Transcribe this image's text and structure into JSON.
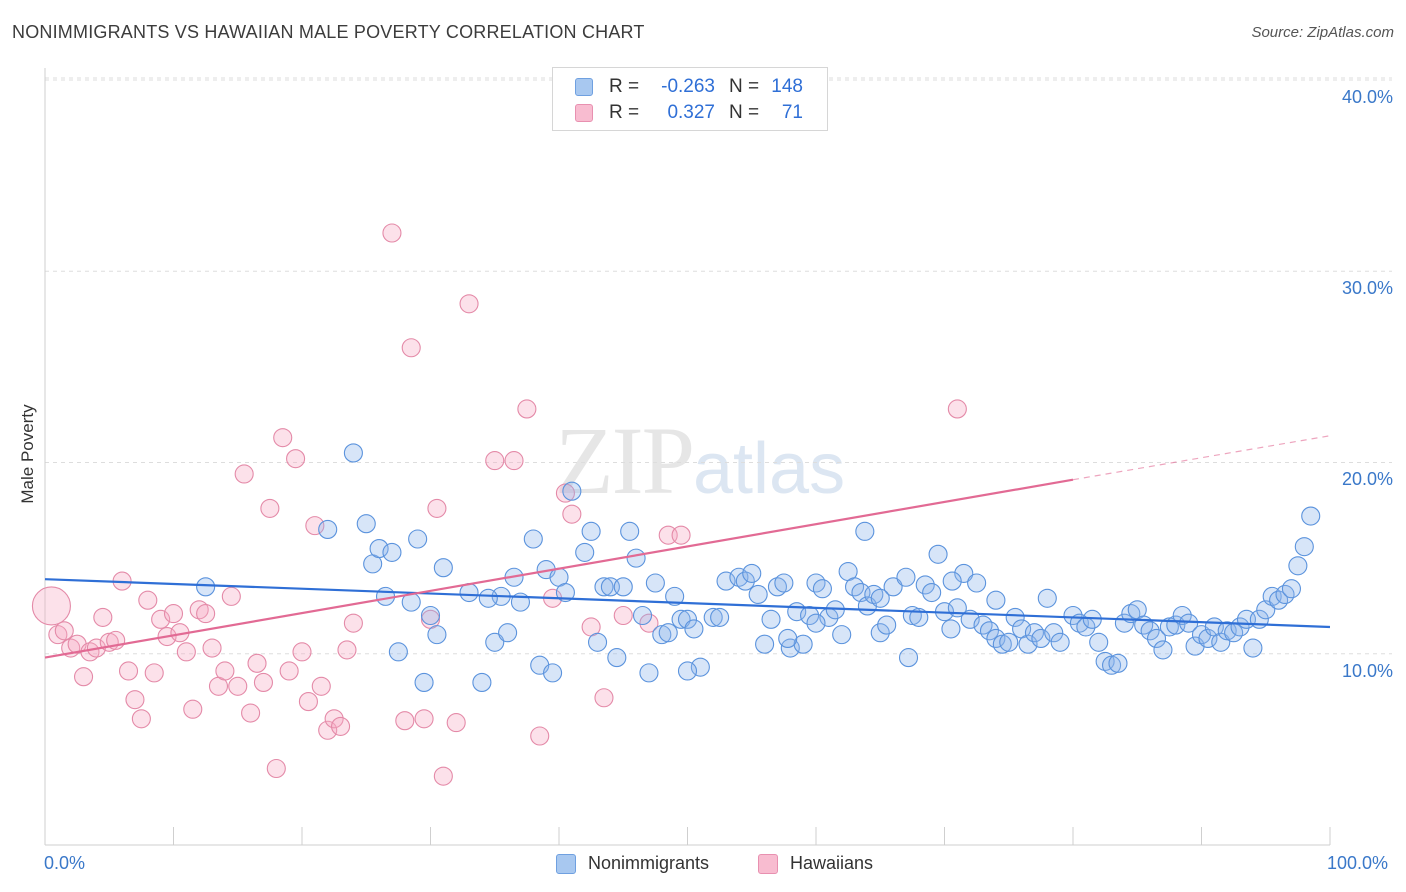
{
  "title": "NONIMMIGRANTS VS HAWAIIAN MALE POVERTY CORRELATION CHART",
  "source": "Source: ZipAtlas.com",
  "watermark": {
    "zip": "ZIP",
    "atlas": "atlas"
  },
  "legend": [
    {
      "r_label": "R =",
      "r_value": "-0.263",
      "n_label": "N =",
      "n_value": "148",
      "color": "#a8c8f0",
      "edge": "#6fa0e0"
    },
    {
      "r_label": "R =",
      "r_value": "0.327",
      "n_label": "N =",
      "n_value": "71",
      "color": "#f8bcd0",
      "edge": "#e890b0"
    }
  ],
  "bottom_legend": [
    {
      "label": "Nonimmigrants",
      "color": "#a8c8f0",
      "edge": "#6fa0e0"
    },
    {
      "label": "Hawaiians",
      "color": "#f8bcd0",
      "edge": "#e890b0"
    }
  ],
  "colors": {
    "blue_fill": "rgba(140,180,235,0.35)",
    "blue_edge": "#5b93dd",
    "blue_line": "#2f6fd6",
    "pink_fill": "rgba(245,170,195,0.35)",
    "pink_edge": "#e48aa8",
    "pink_line": "#e26a94",
    "grid": "#dddddd",
    "axis_text": "#3a78c9"
  },
  "chart_data": {
    "type": "scatter",
    "title": "NONIMMIGRANTS VS HAWAIIAN MALE POVERTY CORRELATION CHART",
    "xlabel": "",
    "ylabel": "Male Poverty",
    "xlim": [
      0,
      100
    ],
    "ylim": [
      0,
      40
    ],
    "x_tick_labels": [
      "0.0%",
      "100.0%"
    ],
    "y_ticks": [
      10,
      20,
      30,
      40
    ],
    "y_tick_labels": [
      "10.0%",
      "20.0%",
      "30.0%",
      "40.0%"
    ],
    "grid": true,
    "legend_position": "top-center",
    "series": [
      {
        "name": "Nonimmigrants",
        "r": -0.263,
        "n": 148,
        "trend": {
          "x": [
            0,
            100
          ],
          "y": [
            13.9,
            11.4
          ]
        },
        "points": [
          [
            12.5,
            13.5
          ],
          [
            24,
            20.5
          ],
          [
            22,
            16.5
          ],
          [
            25,
            16.8
          ],
          [
            25.5,
            14.7
          ],
          [
            26,
            15.5
          ],
          [
            26.5,
            13
          ],
          [
            27,
            15.3
          ],
          [
            27.5,
            10.1
          ],
          [
            28.5,
            12.7
          ],
          [
            29,
            16
          ],
          [
            29.5,
            8.5
          ],
          [
            30,
            12
          ],
          [
            30.5,
            11
          ],
          [
            31,
            14.5
          ],
          [
            33,
            13.2
          ],
          [
            34,
            8.5
          ],
          [
            35,
            10.6
          ],
          [
            35.5,
            13
          ],
          [
            36,
            11.1
          ],
          [
            36.5,
            14
          ],
          [
            37,
            12.7
          ],
          [
            38,
            16
          ],
          [
            38.5,
            9.4
          ],
          [
            39,
            14.4
          ],
          [
            39.5,
            9
          ],
          [
            40,
            14
          ],
          [
            40.5,
            13.2
          ],
          [
            41,
            18.5
          ],
          [
            42,
            15.3
          ],
          [
            42.5,
            16.4
          ],
          [
            43,
            10.6
          ],
          [
            43.5,
            13.5
          ],
          [
            44,
            13.5
          ],
          [
            44.5,
            9.8
          ],
          [
            45,
            13.5
          ],
          [
            45.5,
            16.4
          ],
          [
            46,
            15
          ],
          [
            46.5,
            12
          ],
          [
            47,
            9
          ],
          [
            47.5,
            13.7
          ],
          [
            48,
            11
          ],
          [
            48.5,
            11.1
          ],
          [
            49,
            13
          ],
          [
            49.5,
            11.8
          ],
          [
            50,
            11.8
          ],
          [
            50.5,
            11.3
          ],
          [
            51,
            9.3
          ],
          [
            52,
            11.9
          ],
          [
            52.5,
            11.9
          ],
          [
            53,
            13.8
          ],
          [
            54,
            14
          ],
          [
            54.5,
            13.8
          ],
          [
            55,
            14.2
          ],
          [
            55.5,
            13.1
          ],
          [
            56,
            10.5
          ],
          [
            56.5,
            11.8
          ],
          [
            57,
            13.5
          ],
          [
            57.5,
            13.7
          ],
          [
            58,
            10.3
          ],
          [
            58.5,
            12.2
          ],
          [
            59,
            10.5
          ],
          [
            59.5,
            12
          ],
          [
            60,
            13.7
          ],
          [
            60.5,
            13.4
          ],
          [
            61,
            11.9
          ],
          [
            61.5,
            12.3
          ],
          [
            62,
            11
          ],
          [
            62.5,
            14.3
          ],
          [
            63,
            13.5
          ],
          [
            63.5,
            13.2
          ],
          [
            64,
            12.5
          ],
          [
            64.5,
            13.1
          ],
          [
            65,
            11.1
          ],
          [
            65.5,
            11.5
          ],
          [
            66,
            13.5
          ],
          [
            67,
            14
          ],
          [
            67.5,
            12
          ],
          [
            68,
            11.9
          ],
          [
            68.5,
            13.6
          ],
          [
            69,
            13.2
          ],
          [
            69.5,
            15.2
          ],
          [
            70,
            12.2
          ],
          [
            70.5,
            11.3
          ],
          [
            71,
            12.4
          ],
          [
            71.5,
            14.2
          ],
          [
            72,
            11.8
          ],
          [
            72.5,
            13.7
          ],
          [
            73,
            11.5
          ],
          [
            73.5,
            11.2
          ],
          [
            74,
            10.8
          ],
          [
            74.5,
            10.5
          ],
          [
            75,
            10.6
          ],
          [
            75.5,
            11.9
          ],
          [
            76,
            11.3
          ],
          [
            76.5,
            10.5
          ],
          [
            77,
            11.1
          ],
          [
            77.5,
            10.8
          ],
          [
            78,
            12.9
          ],
          [
            78.5,
            11.1
          ],
          [
            79,
            10.6
          ],
          [
            80,
            12
          ],
          [
            80.5,
            11.6
          ],
          [
            81,
            11.4
          ],
          [
            81.5,
            11.8
          ],
          [
            82,
            10.6
          ],
          [
            82.5,
            9.6
          ],
          [
            83,
            9.4
          ],
          [
            83.5,
            9.5
          ],
          [
            84,
            11.6
          ],
          [
            84.5,
            12.1
          ],
          [
            85,
            12.3
          ],
          [
            85.5,
            11.5
          ],
          [
            86,
            11.2
          ],
          [
            86.5,
            10.8
          ],
          [
            87,
            10.2
          ],
          [
            87.5,
            11.4
          ],
          [
            88,
            11.5
          ],
          [
            88.5,
            12
          ],
          [
            89,
            11.6
          ],
          [
            89.5,
            10.4
          ],
          [
            90,
            11
          ],
          [
            90.5,
            10.8
          ],
          [
            91,
            11.4
          ],
          [
            91.5,
            10.6
          ],
          [
            92,
            11.2
          ],
          [
            92.5,
            11.1
          ],
          [
            93,
            11.4
          ],
          [
            93.5,
            11.8
          ],
          [
            94,
            10.3
          ],
          [
            94.5,
            11.8
          ],
          [
            95,
            12.3
          ],
          [
            95.5,
            13
          ],
          [
            96,
            12.8
          ],
          [
            96.5,
            13.1
          ],
          [
            97,
            13.4
          ],
          [
            97.5,
            14.6
          ],
          [
            98,
            15.6
          ],
          [
            98.5,
            17.2
          ],
          [
            63.8,
            16.4
          ],
          [
            34.5,
            12.9
          ],
          [
            50,
            9.1
          ],
          [
            65,
            12.9
          ],
          [
            74,
            12.8
          ],
          [
            60,
            11.6
          ],
          [
            57.8,
            10.8
          ],
          [
            70.6,
            13.8
          ],
          [
            67.2,
            9.8
          ]
        ]
      },
      {
        "name": "Hawaiians",
        "r": 0.327,
        "n": 71,
        "trend": {
          "x": [
            0,
            80
          ],
          "y": [
            9.8,
            19.1
          ]
        },
        "trend_dashed": {
          "x": [
            80,
            100
          ],
          "y": [
            19.1,
            21.4
          ]
        },
        "points": [
          [
            0.5,
            12.5
          ],
          [
            1,
            11
          ],
          [
            1.5,
            11.2
          ],
          [
            2,
            10.3
          ],
          [
            2.5,
            10.5
          ],
          [
            3,
            8.8
          ],
          [
            3.5,
            10.1
          ],
          [
            4,
            10.3
          ],
          [
            4.5,
            11.9
          ],
          [
            5,
            10.6
          ],
          [
            5.5,
            10.7
          ],
          [
            6,
            13.8
          ],
          [
            6.5,
            9.1
          ],
          [
            7,
            7.6
          ],
          [
            7.5,
            6.6
          ],
          [
            8,
            12.8
          ],
          [
            8.5,
            9
          ],
          [
            9,
            11.8
          ],
          [
            9.5,
            10.9
          ],
          [
            10,
            12.1
          ],
          [
            10.5,
            11.1
          ],
          [
            11,
            10.1
          ],
          [
            11.5,
            7.1
          ],
          [
            12,
            12.3
          ],
          [
            12.5,
            12.1
          ],
          [
            13,
            10.3
          ],
          [
            13.5,
            8.3
          ],
          [
            14,
            9.1
          ],
          [
            14.5,
            13
          ],
          [
            15,
            8.3
          ],
          [
            15.5,
            19.4
          ],
          [
            16,
            6.9
          ],
          [
            16.5,
            9.5
          ],
          [
            17,
            8.5
          ],
          [
            17.5,
            17.6
          ],
          [
            18,
            4
          ],
          [
            18.5,
            21.3
          ],
          [
            19,
            9.1
          ],
          [
            19.5,
            20.2
          ],
          [
            20,
            10.1
          ],
          [
            20.5,
            7.5
          ],
          [
            21,
            16.7
          ],
          [
            21.5,
            8.3
          ],
          [
            22,
            6
          ],
          [
            22.5,
            6.6
          ],
          [
            23,
            6.2
          ],
          [
            23.5,
            10.2
          ],
          [
            24,
            11.6
          ],
          [
            27,
            32
          ],
          [
            28,
            6.5
          ],
          [
            28.5,
            26
          ],
          [
            29.5,
            6.6
          ],
          [
            30,
            11.8
          ],
          [
            30.5,
            17.6
          ],
          [
            31,
            3.6
          ],
          [
            32,
            6.4
          ],
          [
            33,
            28.3
          ],
          [
            35,
            20.1
          ],
          [
            36.5,
            20.1
          ],
          [
            37.5,
            22.8
          ],
          [
            38.5,
            5.7
          ],
          [
            39.5,
            12.9
          ],
          [
            40.5,
            18.4
          ],
          [
            41,
            17.3
          ],
          [
            42.5,
            11.4
          ],
          [
            43.5,
            7.7
          ],
          [
            45,
            12
          ],
          [
            47,
            11.6
          ],
          [
            48.5,
            16.2
          ],
          [
            49.5,
            16.2
          ],
          [
            71,
            22.8
          ]
        ]
      }
    ]
  }
}
